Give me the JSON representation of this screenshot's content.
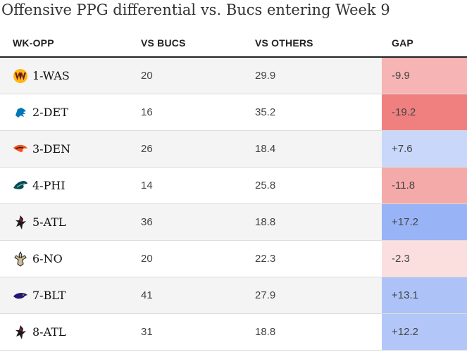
{
  "chart_data": {
    "type": "table",
    "title": "Offensive PPG differential vs. Bucs entering Week 9",
    "columns": [
      "WK-OPP",
      "VS BUCS",
      "VS OTHERS",
      "GAP"
    ],
    "rows": [
      {
        "opp": "1-WAS",
        "team": "washington",
        "vs_bucs": "20",
        "vs_others": "29.9",
        "gap": "-9.9",
        "gap_value": -9.9,
        "logo_icon": "washington-logo-icon"
      },
      {
        "opp": "2-DET",
        "team": "detroit",
        "vs_bucs": "16",
        "vs_others": "35.2",
        "gap": "-19.2",
        "gap_value": -19.2,
        "logo_icon": "lions-logo-icon"
      },
      {
        "opp": "3-DEN",
        "team": "denver",
        "vs_bucs": "26",
        "vs_others": "18.4",
        "gap": "+7.6",
        "gap_value": 7.6,
        "logo_icon": "broncos-logo-icon"
      },
      {
        "opp": "4-PHI",
        "team": "philadelphia",
        "vs_bucs": "14",
        "vs_others": "25.8",
        "gap": "-11.8",
        "gap_value": -11.8,
        "logo_icon": "eagles-logo-icon"
      },
      {
        "opp": "5-ATL",
        "team": "atlanta",
        "vs_bucs": "36",
        "vs_others": "18.8",
        "gap": "+17.2",
        "gap_value": 17.2,
        "logo_icon": "falcons-logo-icon"
      },
      {
        "opp": "6-NO",
        "team": "new-orleans",
        "vs_bucs": "20",
        "vs_others": "22.3",
        "gap": "-2.3",
        "gap_value": -2.3,
        "logo_icon": "saints-logo-icon"
      },
      {
        "opp": "7-BLT",
        "team": "baltimore",
        "vs_bucs": "41",
        "vs_others": "27.9",
        "gap": "+13.1",
        "gap_value": 13.1,
        "logo_icon": "ravens-logo-icon"
      },
      {
        "opp": "8-ATL",
        "team": "atlanta",
        "vs_bucs": "31",
        "vs_others": "18.8",
        "gap": "+12.2",
        "gap_value": 12.2,
        "logo_icon": "falcons-logo-icon"
      }
    ],
    "gap_colors": {
      "negative": "#f08080",
      "positive": "#8fadf5",
      "max_abs": 19.2
    },
    "row_shading": [
      "#f4f4f4",
      "#ffffff"
    ]
  }
}
